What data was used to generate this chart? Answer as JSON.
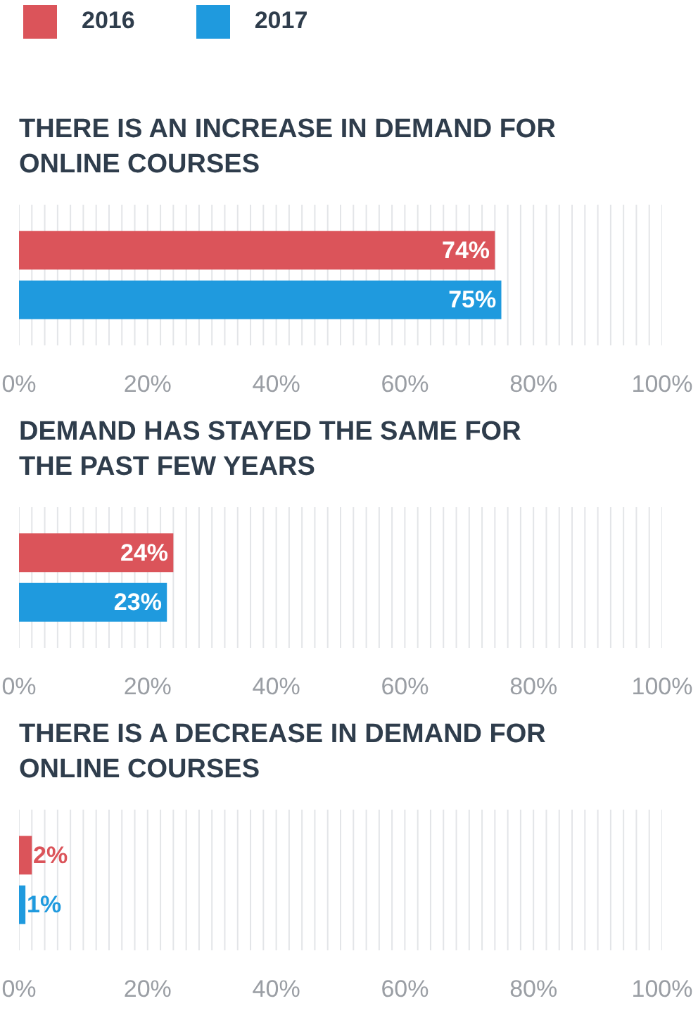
{
  "chart_data": [
    {
      "type": "bar",
      "orientation": "horizontal",
      "title": "THERE IS AN INCREASE IN DEMAND FOR\nONLINE COURSES",
      "categories": [
        null
      ],
      "legend": "top",
      "grid": "x",
      "xlim": [
        0,
        100
      ],
      "xticks": [
        {
          "value": 0,
          "label": "0%"
        },
        {
          "value": 2,
          "label": null
        },
        {
          "value": 4,
          "label": null
        },
        {
          "value": 6,
          "label": null
        },
        {
          "value": 8,
          "label": null
        },
        {
          "value": 10,
          "label": null
        },
        {
          "value": 12,
          "label": null
        },
        {
          "value": 14,
          "label": null
        },
        {
          "value": 16,
          "label": null
        },
        {
          "value": 18,
          "label": null
        },
        {
          "value": 20,
          "label": "20%"
        },
        {
          "value": 22,
          "label": null
        },
        {
          "value": 24,
          "label": null
        },
        {
          "value": 26,
          "label": null
        },
        {
          "value": 28,
          "label": null
        },
        {
          "value": 30,
          "label": null
        },
        {
          "value": 32,
          "label": null
        },
        {
          "value": 34,
          "label": null
        },
        {
          "value": 36,
          "label": null
        },
        {
          "value": 38,
          "label": null
        },
        {
          "value": 40,
          "label": "40%"
        },
        {
          "value": 42,
          "label": null
        },
        {
          "value": 44,
          "label": null
        },
        {
          "value": 46,
          "label": null
        },
        {
          "value": 48,
          "label": null
        },
        {
          "value": 50,
          "label": null
        },
        {
          "value": 52,
          "label": null
        },
        {
          "value": 54,
          "label": null
        },
        {
          "value": 56,
          "label": null
        },
        {
          "value": 58,
          "label": null
        },
        {
          "value": 60,
          "label": "60%"
        },
        {
          "value": 62,
          "label": null
        },
        {
          "value": 64,
          "label": null
        },
        {
          "value": 66,
          "label": null
        },
        {
          "value": 68,
          "label": null
        },
        {
          "value": 70,
          "label": null
        },
        {
          "value": 72,
          "label": null
        },
        {
          "value": 74,
          "label": null
        },
        {
          "value": 76,
          "label": null
        },
        {
          "value": 78,
          "label": null
        },
        {
          "value": 80,
          "label": "80%"
        },
        {
          "value": 82,
          "label": null
        },
        {
          "value": 84,
          "label": null
        },
        {
          "value": 86,
          "label": null
        },
        {
          "value": 88,
          "label": null
        },
        {
          "value": 90,
          "label": null
        },
        {
          "value": 92,
          "label": null
        },
        {
          "value": 94,
          "label": null
        },
        {
          "value": 96,
          "label": null
        },
        {
          "value": 98,
          "label": null
        },
        {
          "value": 100,
          "label": "100%"
        }
      ],
      "series": [
        {
          "name": "2016",
          "color": "#db545a",
          "values": [
            74
          ],
          "value_labels": [
            "74%"
          ]
        },
        {
          "name": "2017",
          "color": "#1f9ade",
          "values": [
            75
          ],
          "value_labels": [
            "75%"
          ]
        }
      ]
    },
    {
      "type": "bar",
      "orientation": "horizontal",
      "title": "DEMAND HAS STAYED THE SAME FOR\nTHE PAST FEW YEARS",
      "categories": [
        null
      ],
      "grid": "x",
      "xlim": [
        0,
        100
      ],
      "xticks": [
        {
          "value": 0,
          "label": "0%"
        },
        {
          "value": 2,
          "label": null
        },
        {
          "value": 4,
          "label": null
        },
        {
          "value": 6,
          "label": null
        },
        {
          "value": 8,
          "label": null
        },
        {
          "value": 10,
          "label": null
        },
        {
          "value": 12,
          "label": null
        },
        {
          "value": 14,
          "label": null
        },
        {
          "value": 16,
          "label": null
        },
        {
          "value": 18,
          "label": null
        },
        {
          "value": 20,
          "label": "20%"
        },
        {
          "value": 22,
          "label": null
        },
        {
          "value": 24,
          "label": null
        },
        {
          "value": 26,
          "label": null
        },
        {
          "value": 28,
          "label": null
        },
        {
          "value": 30,
          "label": null
        },
        {
          "value": 32,
          "label": null
        },
        {
          "value": 34,
          "label": null
        },
        {
          "value": 36,
          "label": null
        },
        {
          "value": 38,
          "label": null
        },
        {
          "value": 40,
          "label": "40%"
        },
        {
          "value": 42,
          "label": null
        },
        {
          "value": 44,
          "label": null
        },
        {
          "value": 46,
          "label": null
        },
        {
          "value": 48,
          "label": null
        },
        {
          "value": 50,
          "label": null
        },
        {
          "value": 52,
          "label": null
        },
        {
          "value": 54,
          "label": null
        },
        {
          "value": 56,
          "label": null
        },
        {
          "value": 58,
          "label": null
        },
        {
          "value": 60,
          "label": "60%"
        },
        {
          "value": 62,
          "label": null
        },
        {
          "value": 64,
          "label": null
        },
        {
          "value": 66,
          "label": null
        },
        {
          "value": 68,
          "label": null
        },
        {
          "value": 70,
          "label": null
        },
        {
          "value": 72,
          "label": null
        },
        {
          "value": 74,
          "label": null
        },
        {
          "value": 76,
          "label": null
        },
        {
          "value": 78,
          "label": null
        },
        {
          "value": 80,
          "label": "80%"
        },
        {
          "value": 82,
          "label": null
        },
        {
          "value": 84,
          "label": null
        },
        {
          "value": 86,
          "label": null
        },
        {
          "value": 88,
          "label": null
        },
        {
          "value": 90,
          "label": null
        },
        {
          "value": 92,
          "label": null
        },
        {
          "value": 94,
          "label": null
        },
        {
          "value": 96,
          "label": null
        },
        {
          "value": 98,
          "label": null
        },
        {
          "value": 100,
          "label": "100%"
        }
      ],
      "series": [
        {
          "color": "#db545a",
          "values": [
            24
          ],
          "value_labels": [
            "24%"
          ]
        },
        {
          "color": "#1f9ade",
          "values": [
            23
          ],
          "value_labels": [
            "23%"
          ]
        }
      ]
    },
    {
      "type": "bar",
      "orientation": "horizontal",
      "title": "THERE IS A DECREASE IN DEMAND FOR\nONLINE COURSES",
      "categories": [
        null
      ],
      "grid": "x",
      "xlim": [
        0,
        100
      ],
      "xticks": [
        {
          "value": 0,
          "label": "0%"
        },
        {
          "value": 2,
          "label": null
        },
        {
          "value": 4,
          "label": null
        },
        {
          "value": 6,
          "label": null
        },
        {
          "value": 8,
          "label": null
        },
        {
          "value": 10,
          "label": null
        },
        {
          "value": 12,
          "label": null
        },
        {
          "value": 14,
          "label": null
        },
        {
          "value": 16,
          "label": null
        },
        {
          "value": 18,
          "label": null
        },
        {
          "value": 20,
          "label": "20%"
        },
        {
          "value": 22,
          "label": null
        },
        {
          "value": 24,
          "label": null
        },
        {
          "value": 26,
          "label": null
        },
        {
          "value": 28,
          "label": null
        },
        {
          "value": 30,
          "label": null
        },
        {
          "value": 32,
          "label": null
        },
        {
          "value": 34,
          "label": null
        },
        {
          "value": 36,
          "label": null
        },
        {
          "value": 38,
          "label": null
        },
        {
          "value": 40,
          "label": "40%"
        },
        {
          "value": 42,
          "label": null
        },
        {
          "value": 44,
          "label": null
        },
        {
          "value": 46,
          "label": null
        },
        {
          "value": 48,
          "label": null
        },
        {
          "value": 50,
          "label": null
        },
        {
          "value": 52,
          "label": null
        },
        {
          "value": 54,
          "label": null
        },
        {
          "value": 56,
          "label": null
        },
        {
          "value": 58,
          "label": null
        },
        {
          "value": 60,
          "label": "60%"
        },
        {
          "value": 62,
          "label": null
        },
        {
          "value": 64,
          "label": null
        },
        {
          "value": 66,
          "label": null
        },
        {
          "value": 68,
          "label": null
        },
        {
          "value": 70,
          "label": null
        },
        {
          "value": 72,
          "label": null
        },
        {
          "value": 74,
          "label": null
        },
        {
          "value": 76,
          "label": null
        },
        {
          "value": 78,
          "label": null
        },
        {
          "value": 80,
          "label": "80%"
        },
        {
          "value": 82,
          "label": null
        },
        {
          "value": 84,
          "label": null
        },
        {
          "value": 86,
          "label": null
        },
        {
          "value": 88,
          "label": null
        },
        {
          "value": 90,
          "label": null
        },
        {
          "value": 92,
          "label": null
        },
        {
          "value": 94,
          "label": null
        },
        {
          "value": 96,
          "label": null
        },
        {
          "value": 98,
          "label": null
        },
        {
          "value": 100,
          "label": "100%"
        }
      ],
      "series": [
        {
          "color": "#db545a",
          "values": [
            2
          ],
          "value_labels": [
            "2%"
          ]
        },
        {
          "color": "#1f9ade",
          "values": [
            1
          ],
          "value_labels": [
            "1%"
          ]
        }
      ]
    }
  ]
}
